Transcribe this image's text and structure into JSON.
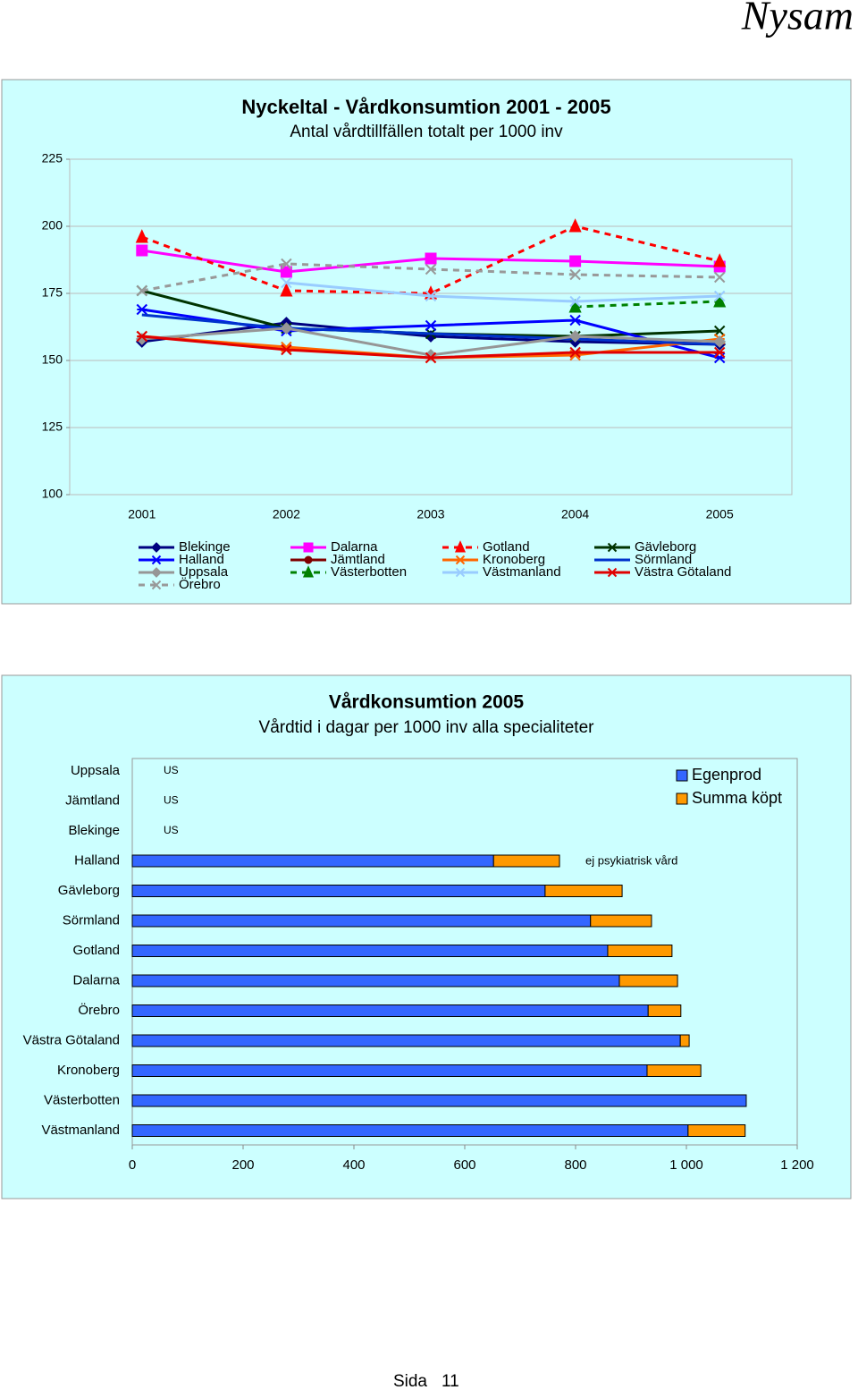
{
  "header": "Nysam",
  "footer": {
    "label": "Sida",
    "page": 11
  },
  "chart_data": [
    {
      "type": "line",
      "title": "Nyckeltal - Vårdkonsumtion 2001 - 2005",
      "subtitle": "Antal vårdtillfällen totalt per 1000 inv",
      "categories": [
        "2001",
        "2002",
        "2003",
        "2004",
        "2005"
      ],
      "ylim": [
        100,
        225
      ],
      "yticks": [
        100,
        125,
        150,
        175,
        200,
        225
      ],
      "grid": true,
      "legend": "bottom",
      "series": [
        {
          "name": "Blekinge",
          "color": "#000080",
          "marker": "diamond",
          "dash": false,
          "values": [
            157,
            164,
            159,
            157,
            156
          ]
        },
        {
          "name": "Dalarna",
          "color": "#ff00ff",
          "marker": "square",
          "dash": false,
          "values": [
            191,
            183,
            188,
            187,
            185
          ]
        },
        {
          "name": "Gotland",
          "color": "#ff0000",
          "marker": "triangle",
          "dash": true,
          "values": [
            196,
            176,
            175,
            200,
            187
          ]
        },
        {
          "name": "Gävleborg",
          "color": "#003300",
          "marker": "x",
          "dash": false,
          "values": [
            176,
            162,
            160,
            159,
            161
          ]
        },
        {
          "name": "Halland",
          "color": "#0000ff",
          "marker": "asterisk",
          "dash": false,
          "values": [
            169,
            161,
            163,
            165,
            151
          ]
        },
        {
          "name": "Jämtland",
          "color": "#800000",
          "marker": "circle",
          "dash": false,
          "values": [
            null,
            null,
            null,
            null,
            null
          ]
        },
        {
          "name": "Kronoberg",
          "color": "#ff6600",
          "marker": "asterisk",
          "dash": false,
          "values": [
            159,
            155,
            151,
            152,
            158
          ]
        },
        {
          "name": "Sörmland",
          "color": "#0033cc",
          "marker": "none",
          "dash": false,
          "values": [
            167,
            162,
            160,
            158,
            156
          ]
        },
        {
          "name": "Uppsala",
          "color": "#969696",
          "marker": "diamond",
          "dash": false,
          "values": [
            158,
            162,
            152,
            159,
            157
          ]
        },
        {
          "name": "Västerbotten",
          "color": "#008000",
          "marker": "triangle",
          "dash": true,
          "values": [
            null,
            null,
            null,
            170,
            172
          ]
        },
        {
          "name": "Västmanland",
          "color": "#99ccff",
          "marker": "x",
          "dash": false,
          "values": [
            null,
            179,
            174,
            172,
            174
          ]
        },
        {
          "name": "Västra Götaland",
          "color": "#e00000",
          "marker": "asterisk",
          "dash": false,
          "values": [
            159,
            154,
            151,
            153,
            153
          ]
        },
        {
          "name": "Örebro",
          "color": "#999999",
          "marker": "x",
          "dash": true,
          "values": [
            176,
            186,
            184,
            182,
            181
          ]
        }
      ]
    },
    {
      "type": "stacked-barh",
      "title": "Vårdkonsumtion 2005",
      "subtitle": "Vårdtid i dagar per 1000 inv alla specialiteter",
      "annotation": "ej psykiatrisk vård",
      "categories": [
        "Uppsala",
        "Jämtland",
        "Blekinge",
        "Halland",
        "Gävleborg",
        "Sörmland",
        "Gotland",
        "Dalarna",
        "Örebro",
        "Västra Götaland",
        "Kronoberg",
        "Västerbotten",
        "Västmanland"
      ],
      "xlim": [
        0,
        1200
      ],
      "xticks": [
        0,
        200,
        400,
        600,
        800,
        {
          "value": 1000,
          "label": "1 000"
        },
        {
          "value": 1200,
          "label": "1 200"
        }
      ],
      "grid": false,
      "legend": "upper right",
      "series": [
        {
          "name": "Egenprod",
          "color": "#3366ff",
          "values": [
            null,
            null,
            null,
            652,
            745,
            827,
            858,
            879,
            931,
            989,
            929,
            1108,
            1003
          ],
          "value_labels": [
            "US",
            "US",
            "US",
            null,
            null,
            null,
            null,
            null,
            null,
            null,
            null,
            null,
            null
          ]
        },
        {
          "name": "Summa köpt",
          "color": "#ff9900",
          "values": [
            null,
            null,
            null,
            119,
            139,
            110,
            116,
            105,
            59,
            16,
            97,
            null,
            103
          ]
        }
      ]
    }
  ]
}
